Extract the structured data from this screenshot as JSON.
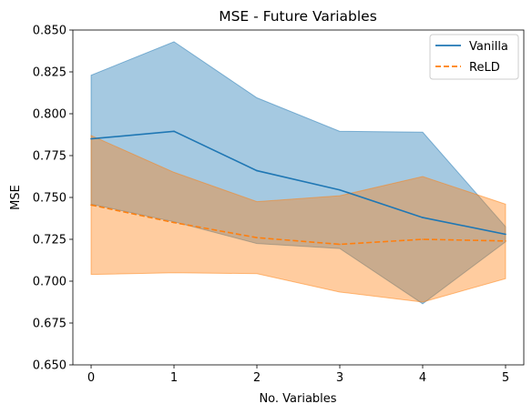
{
  "chart_data": {
    "type": "line",
    "title": "MSE - Future Variables",
    "xlabel": "No. Variables",
    "ylabel": "MSE",
    "x": [
      0,
      1,
      2,
      3,
      4,
      5
    ],
    "xticks": [
      "0",
      "1",
      "2",
      "3",
      "4",
      "5"
    ],
    "xlim": [
      -0.22,
      5.22
    ],
    "ylim": [
      0.65,
      0.85
    ],
    "yticks": [
      "0.650",
      "0.675",
      "0.700",
      "0.725",
      "0.750",
      "0.775",
      "0.800",
      "0.825",
      "0.850"
    ],
    "grid": false,
    "legend_position": "top-right",
    "series": [
      {
        "name": "Vanilla",
        "values": [
          0.785,
          0.7895,
          0.766,
          0.7545,
          0.738,
          0.728
        ],
        "band_upper": [
          0.823,
          0.843,
          0.8095,
          0.7895,
          0.789,
          0.7325
        ],
        "band_lower": [
          0.746,
          0.7355,
          0.7225,
          0.7195,
          0.6865,
          0.7235
        ],
        "color": "#1f77b4",
        "linestyle": "solid"
      },
      {
        "name": "ReLD",
        "values": [
          0.7455,
          0.735,
          0.726,
          0.722,
          0.725,
          0.724
        ],
        "band_upper": [
          0.787,
          0.765,
          0.7475,
          0.751,
          0.7625,
          0.746
        ],
        "band_lower": [
          0.704,
          0.705,
          0.7045,
          0.6935,
          0.6875,
          0.7015
        ],
        "color": "#ff7f0e",
        "linestyle": "dashed"
      }
    ]
  }
}
